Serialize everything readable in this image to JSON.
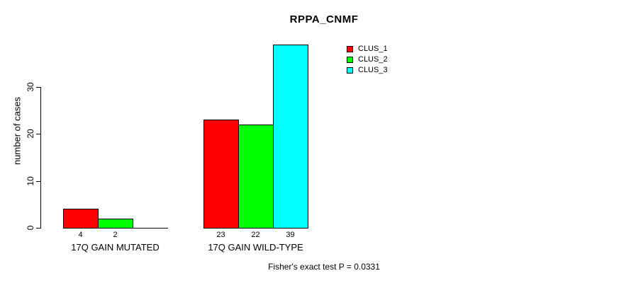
{
  "chart_data": {
    "type": "bar",
    "title": "RPPA_CNMF",
    "xlabel": "",
    "ylabel": "number of cases",
    "ylim": [
      0,
      39
    ],
    "yticks": [
      0,
      10,
      20,
      30
    ],
    "grid": false,
    "legend_position": "top-right-inside",
    "categories": [
      "17Q GAIN MUTATED",
      "17Q GAIN WILD-TYPE"
    ],
    "series": [
      {
        "name": "CLUS_1",
        "color": "#ff0000",
        "values": [
          4,
          23
        ]
      },
      {
        "name": "CLUS_2",
        "color": "#00ff00",
        "values": [
          2,
          22
        ]
      },
      {
        "name": "CLUS_3",
        "color": "#00ffff",
        "values": [
          0,
          39
        ]
      }
    ],
    "bar_value_labels": [
      [
        "4",
        "2",
        ""
      ],
      [
        "23",
        "22",
        "39"
      ]
    ],
    "annotation": "Fisher's exact test P = 0.0331"
  },
  "colors": {
    "axis": "#000000",
    "background": "#ffffff",
    "clus_1": "#ff0000",
    "clus_2": "#00ff00",
    "clus_3": "#00ffff"
  }
}
